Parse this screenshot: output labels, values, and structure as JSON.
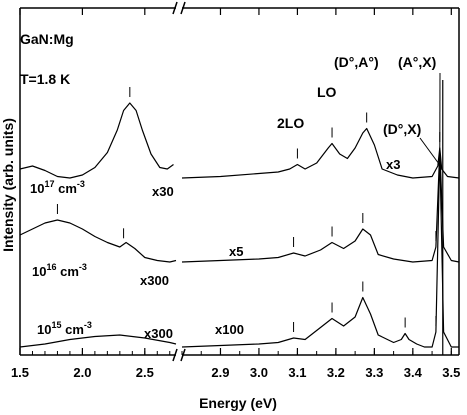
{
  "chart_data": {
    "type": "line",
    "title": "",
    "sample": "GaN:Mg",
    "temperature": "T=1.8 K",
    "xlabel": "Energy (eV)",
    "ylabel": "Intensity (arb. units)",
    "axis_break": true,
    "left_panel": {
      "xlim": [
        1.5,
        2.75
      ],
      "ticks": [
        1.5,
        2.0,
        2.5
      ],
      "tick_labels": [
        "1.5",
        "2.0",
        "2.5"
      ]
    },
    "right_panel": {
      "xlim": [
        2.8,
        3.52
      ],
      "ticks": [
        2.9,
        3.0,
        3.1,
        3.2,
        3.3,
        3.4,
        3.5
      ],
      "tick_labels": [
        "2.9",
        "3.0",
        "3.1",
        "3.2",
        "3.3",
        "3.4",
        "3.5"
      ]
    },
    "peak_labels": [
      {
        "text": "2LO",
        "energy": 3.1
      },
      {
        "text": "LO",
        "energy": 3.19
      },
      {
        "text": "(D°,A°)",
        "energy": 3.27
      },
      {
        "text": "(A°,X)",
        "energy": 3.47
      },
      {
        "text": "(D°,X)",
        "energy": 3.47
      }
    ],
    "series": [
      {
        "concentration_base": "10",
        "concentration_exp": "17",
        "concentration_unit": "cm",
        "concentration_unit_exp": "-3",
        "left_multiplier": "x30",
        "right_multiplier": "x3",
        "offset": 2.0,
        "left_peak_marker": 2.38,
        "right_markers": [
          3.1,
          3.19,
          3.28,
          3.47
        ],
        "left_points": [
          [
            1.5,
            0.06
          ],
          [
            1.6,
            0.08
          ],
          [
            1.7,
            0.05
          ],
          [
            1.8,
            0.01
          ],
          [
            1.9,
            0.0
          ],
          [
            2.0,
            0.02
          ],
          [
            2.1,
            0.07
          ],
          [
            2.2,
            0.17
          ],
          [
            2.28,
            0.32
          ],
          [
            2.33,
            0.45
          ],
          [
            2.38,
            0.5
          ],
          [
            2.43,
            0.45
          ],
          [
            2.48,
            0.32
          ],
          [
            2.55,
            0.16
          ],
          [
            2.62,
            0.07
          ],
          [
            2.68,
            0.06
          ],
          [
            2.73,
            0.09
          ]
        ],
        "right_points": [
          [
            2.8,
            0.0
          ],
          [
            2.9,
            0.01
          ],
          [
            3.0,
            0.03
          ],
          [
            3.05,
            0.04
          ],
          [
            3.08,
            0.06
          ],
          [
            3.1,
            0.09
          ],
          [
            3.12,
            0.06
          ],
          [
            3.15,
            0.1
          ],
          [
            3.18,
            0.2
          ],
          [
            3.19,
            0.23
          ],
          [
            3.21,
            0.16
          ],
          [
            3.23,
            0.13
          ],
          [
            3.25,
            0.2
          ],
          [
            3.27,
            0.3
          ],
          [
            3.28,
            0.33
          ],
          [
            3.3,
            0.22
          ],
          [
            3.32,
            0.06
          ],
          [
            3.36,
            0.02
          ],
          [
            3.4,
            0.0
          ],
          [
            3.45,
            0.01
          ],
          [
            3.465,
            0.08
          ],
          [
            3.47,
            0.2
          ],
          [
            3.475,
            0.06
          ],
          [
            3.49,
            0.01
          ],
          [
            3.52,
            0.0
          ]
        ]
      },
      {
        "concentration_base": "10",
        "concentration_exp": "16",
        "concentration_unit": "cm",
        "concentration_unit_exp": "-3",
        "left_multiplier": "x300",
        "right_multiplier": "x5",
        "offset": 1.0,
        "left_peak_marker": 1.8,
        "left_second_marker": 2.33,
        "right_markers": [
          3.09,
          3.19,
          3.27,
          3.46
        ],
        "left_points": [
          [
            1.5,
            0.18
          ],
          [
            1.6,
            0.22
          ],
          [
            1.7,
            0.26
          ],
          [
            1.8,
            0.28
          ],
          [
            1.9,
            0.26
          ],
          [
            2.0,
            0.22
          ],
          [
            2.1,
            0.17
          ],
          [
            2.2,
            0.13
          ],
          [
            2.3,
            0.1
          ],
          [
            2.35,
            0.13
          ],
          [
            2.42,
            0.09
          ],
          [
            2.5,
            0.03
          ],
          [
            2.6,
            0.01
          ],
          [
            2.7,
            0.0
          ],
          [
            2.75,
            0.01
          ]
        ],
        "right_points": [
          [
            2.8,
            0.0
          ],
          [
            2.9,
            0.01
          ],
          [
            3.0,
            0.02
          ],
          [
            3.05,
            0.03
          ],
          [
            3.09,
            0.06
          ],
          [
            3.12,
            0.04
          ],
          [
            3.16,
            0.08
          ],
          [
            3.19,
            0.13
          ],
          [
            3.22,
            0.09
          ],
          [
            3.25,
            0.14
          ],
          [
            3.27,
            0.22
          ],
          [
            3.29,
            0.18
          ],
          [
            3.31,
            0.05
          ],
          [
            3.35,
            0.02
          ],
          [
            3.4,
            0.0
          ],
          [
            3.45,
            0.01
          ],
          [
            3.46,
            0.1
          ],
          [
            3.47,
            0.75
          ],
          [
            3.48,
            0.1
          ],
          [
            3.5,
            0.01
          ],
          [
            3.52,
            0.0
          ]
        ]
      },
      {
        "concentration_base": "10",
        "concentration_exp": "15",
        "concentration_unit": "cm",
        "concentration_unit_exp": "-3",
        "left_multiplier": "x300",
        "right_multiplier": "x100",
        "offset": 0.0,
        "right_markers": [
          3.09,
          3.19,
          3.27,
          3.38,
          3.46
        ],
        "left_points": [
          [
            1.5,
            0.0
          ],
          [
            1.7,
            0.02
          ],
          [
            1.9,
            0.05
          ],
          [
            2.1,
            0.07
          ],
          [
            2.3,
            0.08
          ],
          [
            2.5,
            0.06
          ],
          [
            2.7,
            0.03
          ],
          [
            2.75,
            0.02
          ]
        ],
        "right_points": [
          [
            2.8,
            0.0
          ],
          [
            2.9,
            0.01
          ],
          [
            3.0,
            0.02
          ],
          [
            3.05,
            0.03
          ],
          [
            3.09,
            0.06
          ],
          [
            3.12,
            0.05
          ],
          [
            3.16,
            0.13
          ],
          [
            3.19,
            0.19
          ],
          [
            3.22,
            0.14
          ],
          [
            3.25,
            0.2
          ],
          [
            3.27,
            0.33
          ],
          [
            3.29,
            0.22
          ],
          [
            3.31,
            0.08
          ],
          [
            3.35,
            0.03
          ],
          [
            3.37,
            0.05
          ],
          [
            3.38,
            0.09
          ],
          [
            3.39,
            0.05
          ],
          [
            3.41,
            0.02
          ],
          [
            3.43,
            0.0
          ],
          [
            3.45,
            0.0
          ],
          [
            3.46,
            0.1
          ],
          [
            3.47,
            1.3
          ],
          [
            3.48,
            0.1
          ],
          [
            3.5,
            0.0
          ],
          [
            3.52,
            0.0
          ]
        ]
      }
    ]
  }
}
